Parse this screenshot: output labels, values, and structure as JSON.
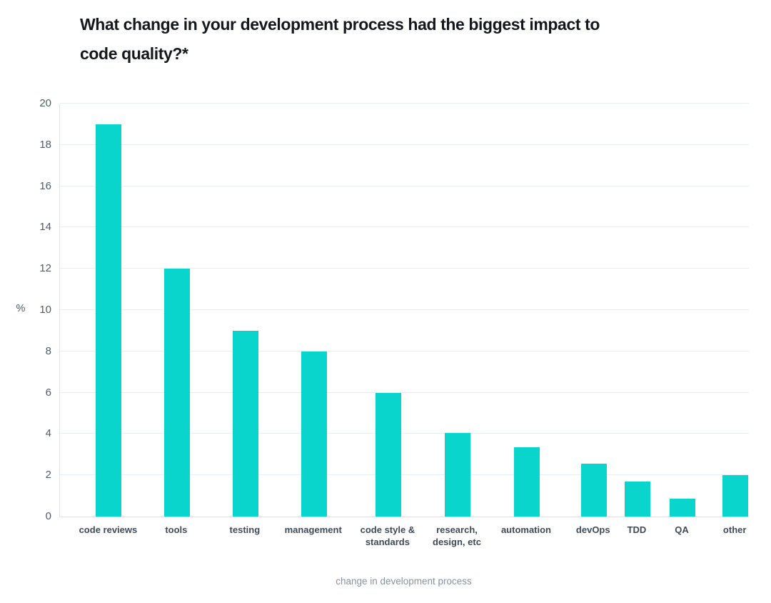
{
  "chart_data": {
    "type": "bar",
    "title": "What change in your development process had the biggest impact to code quality?*",
    "xlabel": "change in development process",
    "ylabel": "%",
    "categories": [
      "code reviews",
      "tools",
      "testing",
      "management",
      "code style & standards",
      "research, design, etc",
      "automation",
      "devOps",
      "TDD",
      "QA",
      "other"
    ],
    "values": [
      19,
      12,
      9,
      8,
      6,
      4.05,
      3.35,
      2.55,
      1.7,
      0.85,
      2
    ],
    "ylim": [
      0,
      20
    ],
    "ytick_step": 2,
    "yticks": [
      0,
      2,
      4,
      6,
      8,
      10,
      12,
      14,
      16,
      18,
      20
    ],
    "grid": true,
    "legend_position": "none",
    "bar_color": "#0ad5cd",
    "x_centers_pct": [
      7.09,
      16.98,
      26.93,
      36.86,
      47.66,
      57.72,
      67.77,
      77.49,
      83.83,
      90.36,
      98.05
    ]
  },
  "colors": {
    "bar": "#0ad5cd",
    "gridline": "#e7eef6",
    "axis_line": "#d8e4ef",
    "tick_text": "#4e5b6b",
    "category_text": "#3d4a59",
    "axis_title_text": "#8493a1",
    "title_text": "#14181c"
  }
}
